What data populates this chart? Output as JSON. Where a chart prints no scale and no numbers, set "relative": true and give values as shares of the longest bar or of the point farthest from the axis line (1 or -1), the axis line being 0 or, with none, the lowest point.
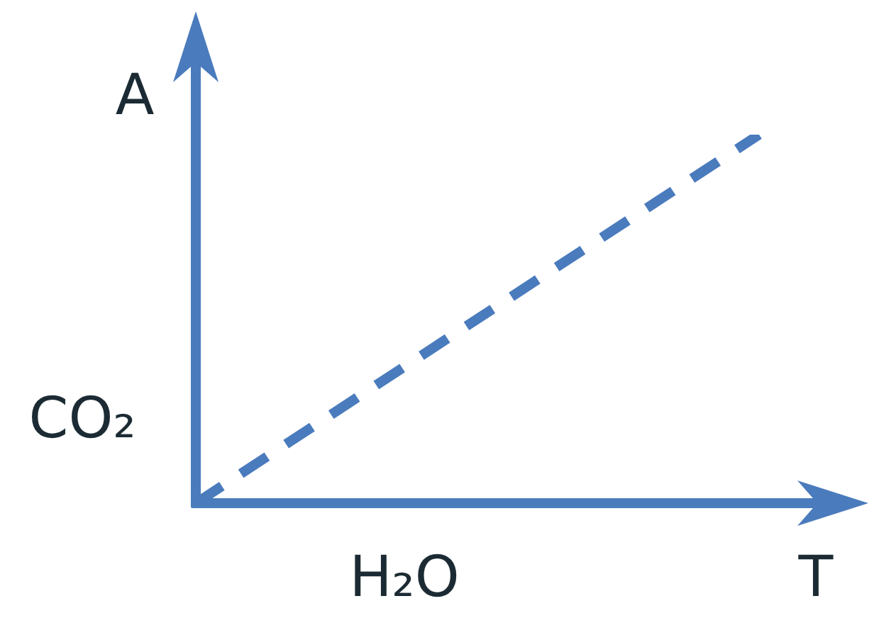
{
  "chart_data": {
    "type": "line",
    "relative": true,
    "categories": [
      null,
      null
    ],
    "series": [
      {
        "color": "#4a7bbd",
        "values": [
          0,
          1
        ]
      }
    ],
    "line_style": "dashed",
    "marker": "none",
    "xlabel": "T",
    "ylabel": "A",
    "annotations": [
      "CO₂",
      "H₂O"
    ],
    "grid": false,
    "legend": false,
    "tick_labels": false
  }
}
